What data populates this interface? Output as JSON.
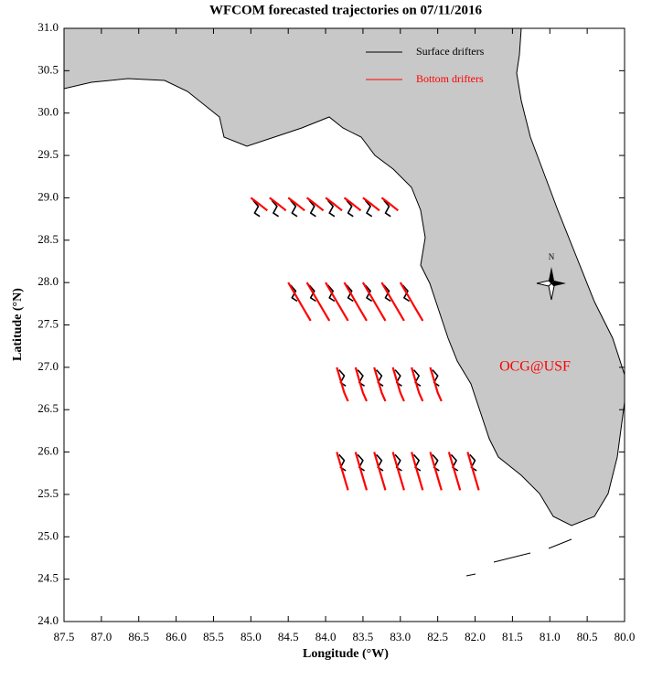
{
  "chart_data": {
    "type": "trajectory",
    "title": "WFCOM forecasted trajectories on 07/11/2016",
    "x_label": "Longitude (°W)",
    "y_label": "Latitude (°N)",
    "annotation": "OCG@USF",
    "annotation_color": "#ff0000",
    "xlim": [
      87.5,
      80.0
    ],
    "ylim": [
      24.0,
      31.0
    ],
    "xticks": [
      87.5,
      {
        "value": 87,
        "label": "87.0"
      },
      86.5,
      {
        "value": 86,
        "label": "86.0"
      },
      85.5,
      {
        "value": 85,
        "label": "85.0"
      },
      84.5,
      {
        "value": 84,
        "label": "84.0"
      },
      83.5,
      {
        "value": 83,
        "label": "83.0"
      },
      82.5,
      {
        "value": 82,
        "label": "82.0"
      },
      81.5,
      {
        "value": 81,
        "label": "81.0"
      },
      80.5,
      {
        "value": 80,
        "label": "80.0"
      }
    ],
    "yticks": [
      {
        "value": 24,
        "label": "24.0"
      },
      24.5,
      {
        "value": 25,
        "label": "25.0"
      },
      25.5,
      {
        "value": 26,
        "label": "26.0"
      },
      26.5,
      {
        "value": 27,
        "label": "27.0"
      },
      27.5,
      {
        "value": 28,
        "label": "28.0"
      },
      28.5,
      {
        "value": 29,
        "label": "29.0"
      },
      29.5,
      {
        "value": 30,
        "label": "30.0"
      },
      30.5,
      {
        "value": 31,
        "label": "31.0"
      }
    ],
    "series": [
      {
        "name": "Surface drifters",
        "color": "#000000",
        "x": [
          84.97,
          84.9,
          84.95,
          84.88,
          null,
          84.72,
          84.65,
          84.7,
          84.63,
          null,
          84.47,
          84.4,
          84.45,
          84.38,
          null,
          84.22,
          84.15,
          84.2,
          84.13,
          null,
          83.97,
          83.9,
          83.95,
          83.88,
          null,
          83.72,
          83.65,
          83.7,
          83.63,
          null,
          83.47,
          83.4,
          83.45,
          83.38,
          null,
          83.22,
          83.15,
          83.2,
          83.13,
          null,
          84.47,
          84.4,
          84.45,
          84.38,
          null,
          84.22,
          84.15,
          84.2,
          84.13,
          null,
          83.97,
          83.9,
          83.95,
          83.88,
          null,
          83.72,
          83.65,
          83.7,
          83.63,
          null,
          83.47,
          83.4,
          83.45,
          83.38,
          null,
          83.22,
          83.15,
          83.2,
          83.13,
          null,
          82.97,
          82.9,
          82.95,
          82.88,
          null,
          83.82,
          83.75,
          83.8,
          83.73,
          null,
          83.57,
          83.5,
          83.55,
          83.48,
          null,
          83.32,
          83.25,
          83.3,
          83.23,
          null,
          83.07,
          83.0,
          83.05,
          82.98,
          null,
          82.82,
          82.75,
          82.8,
          82.73,
          null,
          82.57,
          82.5,
          82.55,
          82.48,
          null,
          83.82,
          83.75,
          83.8,
          83.73,
          null,
          83.57,
          83.5,
          83.55,
          83.48,
          null,
          83.32,
          83.25,
          83.3,
          83.23,
          null,
          83.07,
          83.0,
          83.05,
          82.98,
          null,
          82.82,
          82.75,
          82.8,
          82.73,
          null,
          82.57,
          82.5,
          82.55,
          82.48,
          null,
          82.32,
          82.25,
          82.3,
          82.23,
          null,
          82.07,
          82.0,
          82.05,
          81.98
        ],
        "values": [
          28.97,
          28.9,
          28.82,
          28.78,
          null,
          28.97,
          28.9,
          28.82,
          28.78,
          null,
          28.97,
          28.9,
          28.82,
          28.78,
          null,
          28.97,
          28.9,
          28.82,
          28.78,
          null,
          28.97,
          28.9,
          28.82,
          28.78,
          null,
          28.97,
          28.9,
          28.82,
          28.78,
          null,
          28.97,
          28.9,
          28.82,
          28.78,
          null,
          28.97,
          28.9,
          28.82,
          28.78,
          null,
          27.97,
          27.9,
          27.82,
          27.78,
          null,
          27.97,
          27.9,
          27.82,
          27.78,
          null,
          27.97,
          27.9,
          27.82,
          27.78,
          null,
          27.97,
          27.9,
          27.82,
          27.78,
          null,
          27.97,
          27.9,
          27.82,
          27.78,
          null,
          27.97,
          27.9,
          27.82,
          27.78,
          null,
          27.97,
          27.9,
          27.82,
          27.78,
          null,
          26.97,
          26.9,
          26.82,
          26.78,
          null,
          26.97,
          26.9,
          26.82,
          26.78,
          null,
          26.97,
          26.9,
          26.82,
          26.78,
          null,
          26.97,
          26.9,
          26.82,
          26.78,
          null,
          26.97,
          26.9,
          26.82,
          26.78,
          null,
          26.97,
          26.9,
          26.82,
          26.78,
          null,
          25.97,
          25.9,
          25.82,
          25.78,
          null,
          25.97,
          25.9,
          25.82,
          25.78,
          null,
          25.97,
          25.9,
          25.82,
          25.78,
          null,
          25.97,
          25.9,
          25.82,
          25.78,
          null,
          25.97,
          25.9,
          25.82,
          25.78,
          null,
          25.97,
          25.9,
          25.82,
          25.78,
          null,
          25.97,
          25.9,
          25.82,
          25.78,
          null,
          25.97,
          25.9,
          25.82,
          25.78
        ]
      },
      {
        "name": "Bottom drifters",
        "color": "#ff0000",
        "x": [
          85.0,
          84.88,
          84.78,
          null,
          84.75,
          84.63,
          84.53,
          null,
          84.5,
          84.38,
          84.28,
          null,
          84.25,
          84.13,
          84.03,
          null,
          84.0,
          83.88,
          83.78,
          null,
          83.75,
          83.63,
          83.53,
          null,
          83.5,
          83.38,
          83.28,
          null,
          83.25,
          83.13,
          83.03,
          null,
          84.5,
          84.4,
          84.3,
          84.2,
          null,
          84.25,
          84.15,
          84.05,
          83.95,
          null,
          84.0,
          83.9,
          83.8,
          83.7,
          null,
          83.75,
          83.65,
          83.55,
          83.45,
          null,
          83.5,
          83.4,
          83.3,
          83.2,
          null,
          83.25,
          83.15,
          83.05,
          82.95,
          null,
          83.0,
          82.9,
          82.8,
          82.7,
          null,
          83.85,
          83.8,
          83.75,
          83.7,
          null,
          83.6,
          83.55,
          83.5,
          83.45,
          null,
          83.35,
          83.3,
          83.25,
          83.2,
          null,
          83.1,
          83.05,
          83.0,
          82.95,
          null,
          82.85,
          82.8,
          82.75,
          82.7,
          null,
          82.6,
          82.55,
          82.5,
          82.45,
          null,
          83.85,
          83.8,
          83.75,
          83.7,
          null,
          83.6,
          83.55,
          83.5,
          83.45,
          null,
          83.35,
          83.3,
          83.25,
          83.2,
          null,
          83.1,
          83.05,
          83.0,
          82.95,
          null,
          82.85,
          82.8,
          82.75,
          82.7,
          null,
          82.6,
          82.55,
          82.5,
          82.45,
          null,
          82.35,
          82.3,
          82.25,
          82.2,
          null,
          82.1,
          82.05,
          82.0,
          81.95
        ],
        "values": [
          29.0,
          28.92,
          28.85,
          null,
          29.0,
          28.92,
          28.85,
          null,
          29.0,
          28.92,
          28.85,
          null,
          29.0,
          28.92,
          28.85,
          null,
          29.0,
          28.92,
          28.85,
          null,
          29.0,
          28.92,
          28.85,
          null,
          29.0,
          28.92,
          28.85,
          null,
          29.0,
          28.92,
          28.85,
          null,
          28.0,
          27.85,
          27.7,
          27.55,
          null,
          28.0,
          27.85,
          27.7,
          27.55,
          null,
          28.0,
          27.85,
          27.7,
          27.55,
          null,
          28.0,
          27.85,
          27.7,
          27.55,
          null,
          28.0,
          27.85,
          27.7,
          27.55,
          null,
          28.0,
          27.85,
          27.7,
          27.55,
          null,
          28.0,
          27.85,
          27.7,
          27.55,
          null,
          27.0,
          26.85,
          26.7,
          26.6,
          null,
          27.0,
          26.85,
          26.7,
          26.6,
          null,
          27.0,
          26.85,
          26.7,
          26.6,
          null,
          27.0,
          26.85,
          26.7,
          26.6,
          null,
          27.0,
          26.85,
          26.7,
          26.6,
          null,
          27.0,
          26.85,
          26.7,
          26.6,
          null,
          26.0,
          25.85,
          25.7,
          25.55,
          null,
          26.0,
          25.85,
          25.7,
          25.55,
          null,
          26.0,
          25.85,
          25.7,
          25.55,
          null,
          26.0,
          25.85,
          25.7,
          25.55,
          null,
          26.0,
          25.85,
          25.7,
          25.55,
          null,
          26.0,
          25.85,
          25.7,
          25.55,
          null,
          26.0,
          25.85,
          25.7,
          25.55,
          null,
          26.0,
          25.85,
          25.7,
          25.55
        ]
      }
    ]
  }
}
